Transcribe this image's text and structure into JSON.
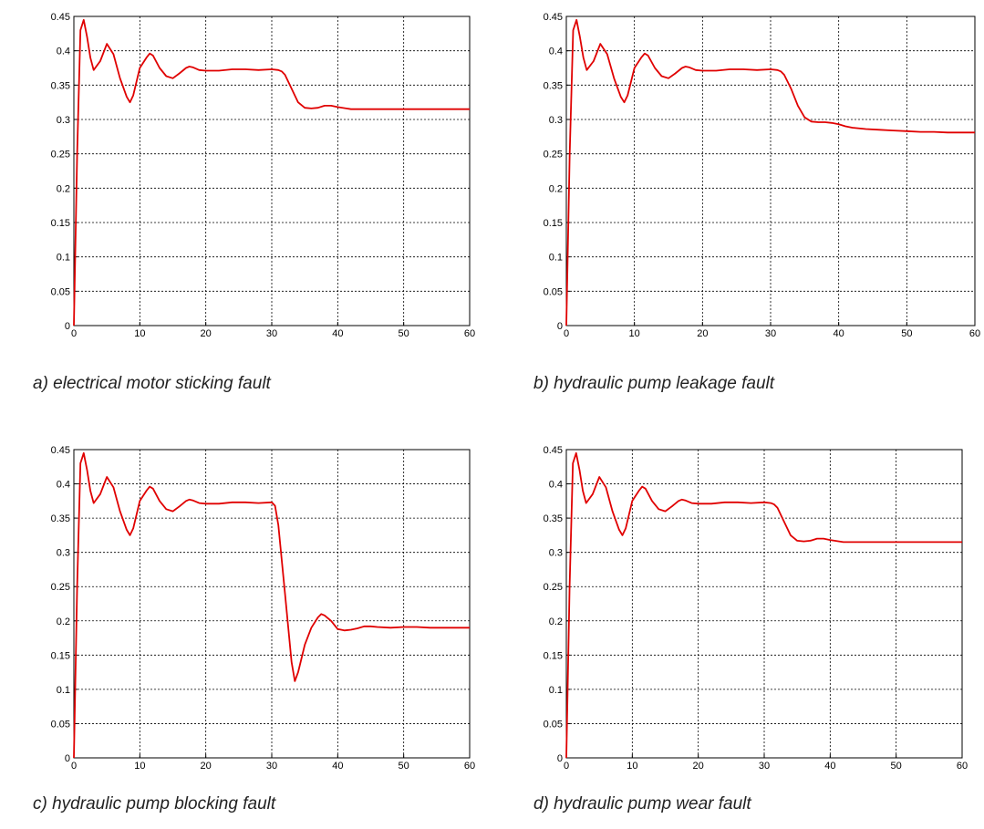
{
  "colors": {
    "series": "#e00000",
    "grid": "#000000",
    "axes": "#000000",
    "background": "#ffffff"
  },
  "chart_data": [
    {
      "type": "line",
      "caption": "a) electrical motor sticking fault",
      "xlim": [
        0,
        60
      ],
      "ylim": [
        0,
        0.45
      ],
      "xticks": [
        "0",
        "10",
        "20",
        "30",
        "40",
        "50",
        "60"
      ],
      "yticks": [
        "0",
        "0.05",
        "0.1",
        "0.15",
        "0.2",
        "0.25",
        "0.3",
        "0.35",
        "0.4",
        "0.45"
      ],
      "grid": true,
      "x": [
        0,
        0.5,
        1,
        1.5,
        2,
        2.5,
        3,
        4,
        5,
        6,
        7,
        8,
        8.5,
        9,
        10,
        11,
        11.5,
        12,
        13,
        14,
        15,
        16,
        17,
        17.5,
        18,
        19,
        20,
        22,
        24,
        26,
        28,
        30,
        31,
        31.5,
        32,
        33,
        34,
        35,
        36,
        37,
        38,
        39,
        40,
        42,
        44,
        46,
        48,
        50,
        52,
        54,
        56,
        58,
        60
      ],
      "y": [
        0,
        0.25,
        0.43,
        0.445,
        0.42,
        0.39,
        0.372,
        0.385,
        0.41,
        0.395,
        0.36,
        0.333,
        0.325,
        0.335,
        0.375,
        0.39,
        0.396,
        0.393,
        0.375,
        0.363,
        0.36,
        0.367,
        0.375,
        0.377,
        0.376,
        0.372,
        0.371,
        0.371,
        0.373,
        0.373,
        0.372,
        0.373,
        0.372,
        0.37,
        0.365,
        0.345,
        0.325,
        0.317,
        0.316,
        0.317,
        0.32,
        0.32,
        0.318,
        0.315,
        0.315,
        0.315,
        0.315,
        0.315,
        0.315,
        0.315,
        0.315,
        0.315,
        0.315
      ]
    },
    {
      "type": "line",
      "caption": "b) hydraulic pump leakage fault",
      "xlim": [
        0,
        60
      ],
      "ylim": [
        0,
        0.45
      ],
      "xticks": [
        "0",
        "10",
        "20",
        "30",
        "40",
        "50",
        "60"
      ],
      "yticks": [
        "0",
        "0.05",
        "0.1",
        "0.15",
        "0.2",
        "0.25",
        "0.3",
        "0.35",
        "0.4",
        "0.45"
      ],
      "grid": true,
      "x": [
        0,
        0.5,
        1,
        1.5,
        2,
        2.5,
        3,
        4,
        5,
        6,
        7,
        8,
        8.5,
        9,
        10,
        11,
        11.5,
        12,
        13,
        14,
        15,
        16,
        17,
        17.5,
        18,
        19,
        20,
        22,
        24,
        26,
        28,
        30,
        31,
        31.5,
        32,
        33,
        34,
        35,
        36,
        37,
        38,
        39,
        40,
        41,
        42,
        44,
        46,
        48,
        50,
        52,
        54,
        56,
        58,
        60
      ],
      "y": [
        0,
        0.25,
        0.43,
        0.445,
        0.42,
        0.39,
        0.372,
        0.385,
        0.41,
        0.395,
        0.36,
        0.333,
        0.325,
        0.335,
        0.375,
        0.39,
        0.396,
        0.393,
        0.375,
        0.363,
        0.36,
        0.367,
        0.375,
        0.377,
        0.376,
        0.372,
        0.371,
        0.371,
        0.373,
        0.373,
        0.372,
        0.373,
        0.372,
        0.37,
        0.365,
        0.345,
        0.32,
        0.303,
        0.297,
        0.296,
        0.296,
        0.295,
        0.293,
        0.29,
        0.288,
        0.286,
        0.285,
        0.284,
        0.283,
        0.282,
        0.282,
        0.281,
        0.281,
        0.281
      ]
    },
    {
      "type": "line",
      "caption": "c) hydraulic pump blocking fault",
      "xlim": [
        0,
        60
      ],
      "ylim": [
        0,
        0.45
      ],
      "xticks": [
        "0",
        "10",
        "20",
        "30",
        "40",
        "50",
        "60"
      ],
      "yticks": [
        "0",
        "0.05",
        "0.1",
        "0.15",
        "0.2",
        "0.25",
        "0.3",
        "0.35",
        "0.4",
        "0.45"
      ],
      "grid": true,
      "x": [
        0,
        0.5,
        1,
        1.5,
        2,
        2.5,
        3,
        4,
        5,
        6,
        7,
        8,
        8.5,
        9,
        10,
        11,
        11.5,
        12,
        13,
        14,
        15,
        16,
        17,
        17.5,
        18,
        19,
        20,
        22,
        24,
        26,
        28,
        30,
        30.5,
        31,
        32,
        33,
        33.5,
        34,
        35,
        36,
        37,
        37.5,
        38,
        39,
        40,
        41,
        42,
        43,
        44,
        45,
        46,
        48,
        50,
        52,
        54,
        56,
        58,
        60
      ],
      "y": [
        0,
        0.25,
        0.43,
        0.445,
        0.42,
        0.39,
        0.372,
        0.385,
        0.41,
        0.395,
        0.36,
        0.333,
        0.325,
        0.335,
        0.375,
        0.39,
        0.396,
        0.393,
        0.375,
        0.363,
        0.36,
        0.367,
        0.375,
        0.377,
        0.376,
        0.372,
        0.371,
        0.371,
        0.373,
        0.373,
        0.372,
        0.373,
        0.368,
        0.34,
        0.24,
        0.14,
        0.112,
        0.125,
        0.165,
        0.19,
        0.205,
        0.21,
        0.208,
        0.2,
        0.188,
        0.186,
        0.187,
        0.189,
        0.192,
        0.192,
        0.191,
        0.19,
        0.191,
        0.191,
        0.19,
        0.19,
        0.19,
        0.19
      ]
    },
    {
      "type": "line",
      "caption": "d) hydraulic pump wear fault",
      "xlim": [
        0,
        60
      ],
      "ylim": [
        0,
        0.45
      ],
      "xticks": [
        "0",
        "10",
        "20",
        "30",
        "40",
        "50",
        "60"
      ],
      "yticks": [
        "0",
        "0.05",
        "0.1",
        "0.15",
        "0.2",
        "0.25",
        "0.3",
        "0.35",
        "0.4",
        "0.45"
      ],
      "grid": true,
      "x": [
        0,
        0.5,
        1,
        1.5,
        2,
        2.5,
        3,
        4,
        5,
        6,
        7,
        8,
        8.5,
        9,
        10,
        11,
        11.5,
        12,
        13,
        14,
        15,
        16,
        17,
        17.5,
        18,
        19,
        20,
        22,
        24,
        26,
        28,
        30,
        31,
        31.5,
        32,
        33,
        34,
        35,
        36,
        37,
        38,
        39,
        40,
        42,
        44,
        46,
        48,
        50,
        52,
        54,
        56,
        58,
        60
      ],
      "y": [
        0,
        0.25,
        0.43,
        0.445,
        0.42,
        0.39,
        0.372,
        0.385,
        0.41,
        0.395,
        0.36,
        0.333,
        0.325,
        0.335,
        0.375,
        0.39,
        0.396,
        0.393,
        0.375,
        0.363,
        0.36,
        0.367,
        0.375,
        0.377,
        0.376,
        0.372,
        0.371,
        0.371,
        0.373,
        0.373,
        0.372,
        0.373,
        0.372,
        0.37,
        0.365,
        0.345,
        0.325,
        0.317,
        0.316,
        0.317,
        0.32,
        0.32,
        0.318,
        0.315,
        0.315,
        0.315,
        0.315,
        0.315,
        0.315,
        0.315,
        0.315,
        0.315,
        0.315
      ]
    }
  ]
}
